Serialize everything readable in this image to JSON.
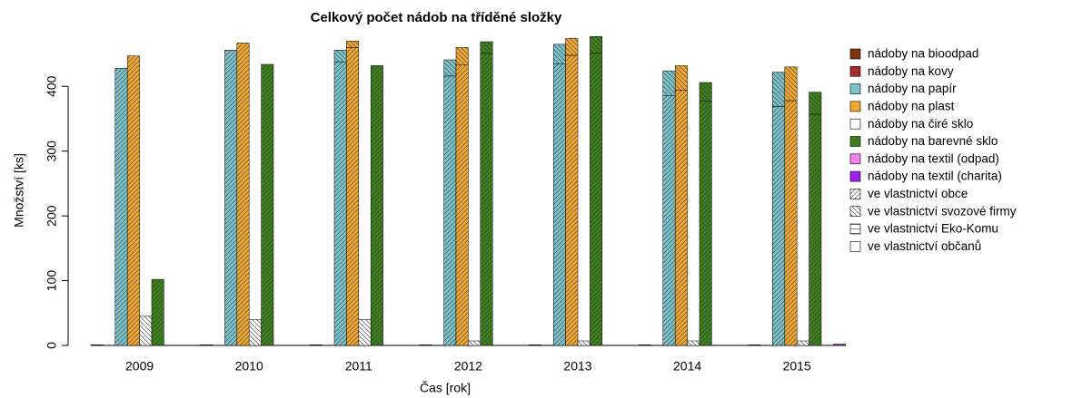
{
  "chart_data": {
    "type": "bar",
    "title": "Celkový počet nádob na tříděné složky",
    "x_label": "Čas [rok]",
    "y_label": "Množství [ks]",
    "categories": [
      "2009",
      "2010",
      "2011",
      "2012",
      "2013",
      "2014",
      "2015"
    ],
    "containers": [
      {
        "name": "nádoby na bioodpad",
        "color": "#7f3510"
      },
      {
        "name": "nádoby na kovy",
        "color": "#a52a2a"
      },
      {
        "name": "nádoby na papír",
        "color": "#7cc3cc"
      },
      {
        "name": "nádoby na plast",
        "color": "#f2a72e"
      },
      {
        "name": "nádoby na čiré sklo",
        "color": "#ffffff"
      },
      {
        "name": "nádoby na barevné sklo",
        "color": "#3c7f1c"
      },
      {
        "name": "nádoby na textil (odpad)",
        "color": "#ee82ee"
      },
      {
        "name": "nádoby na textil (charita)",
        "color": "#a020f0"
      }
    ],
    "series": [
      {
        "name": "ve vlastnictví obce",
        "pattern": "diagonal-up",
        "values": [
          [
            1,
            1,
            1,
            1,
            1,
            1,
            1
          ],
          [
            0,
            0,
            0,
            0,
            0,
            0,
            0
          ],
          [
            428,
            456,
            438,
            416,
            435,
            386,
            369
          ],
          [
            447,
            467,
            460,
            433,
            448,
            394,
            378
          ],
          [
            0,
            0,
            0,
            0,
            0,
            0,
            0
          ],
          [
            102,
            434,
            432,
            451,
            451,
            377,
            357
          ],
          [
            0,
            0,
            0,
            0,
            0,
            0,
            0
          ],
          [
            0,
            0,
            0,
            0,
            0,
            0,
            2
          ]
        ]
      },
      {
        "name": "ve vlastnictví svozové firmy",
        "pattern": "diagonal-down",
        "values": [
          [
            0,
            0,
            0,
            0,
            0,
            0,
            0
          ],
          [
            0,
            0,
            0,
            0,
            0,
            0,
            0
          ],
          [
            0,
            0,
            18,
            25,
            30,
            38,
            53
          ],
          [
            0,
            0,
            10,
            27,
            26,
            38,
            52
          ],
          [
            45,
            40,
            40,
            7,
            7,
            7,
            7
          ],
          [
            0,
            0,
            0,
            18,
            26,
            29,
            34
          ],
          [
            0,
            0,
            0,
            0,
            0,
            0,
            0
          ],
          [
            0,
            0,
            0,
            0,
            0,
            0,
            0
          ]
        ]
      },
      {
        "name": "ve vlastnictví Eko-Komu",
        "pattern": "horizontal",
        "values": [
          [
            0,
            0,
            0,
            0,
            0,
            0,
            0
          ],
          [
            0,
            0,
            0,
            0,
            0,
            0,
            0
          ],
          [
            0,
            0,
            0,
            0,
            0,
            0,
            0
          ],
          [
            0,
            0,
            0,
            0,
            0,
            0,
            0
          ],
          [
            0,
            0,
            0,
            0,
            0,
            0,
            0
          ],
          [
            0,
            0,
            0,
            0,
            0,
            0,
            0
          ],
          [
            0,
            0,
            0,
            0,
            0,
            0,
            0
          ],
          [
            0,
            0,
            0,
            0,
            0,
            0,
            0
          ]
        ]
      },
      {
        "name": "ve vlastnictví občanů",
        "pattern": "none",
        "values": [
          [
            0,
            0,
            0,
            0,
            0,
            0,
            0
          ],
          [
            0,
            0,
            0,
            0,
            0,
            0,
            0
          ],
          [
            0,
            0,
            0,
            0,
            0,
            0,
            0
          ],
          [
            0,
            0,
            0,
            0,
            0,
            0,
            0
          ],
          [
            0,
            0,
            0,
            0,
            0,
            0,
            0
          ],
          [
            0,
            0,
            0,
            0,
            0,
            0,
            0
          ],
          [
            0,
            0,
            0,
            0,
            0,
            0,
            0
          ],
          [
            0,
            0,
            0,
            0,
            0,
            0,
            0
          ]
        ]
      }
    ],
    "ylim": [
      0,
      490
    ],
    "yticks": [
      0,
      100,
      200,
      300,
      400
    ]
  }
}
